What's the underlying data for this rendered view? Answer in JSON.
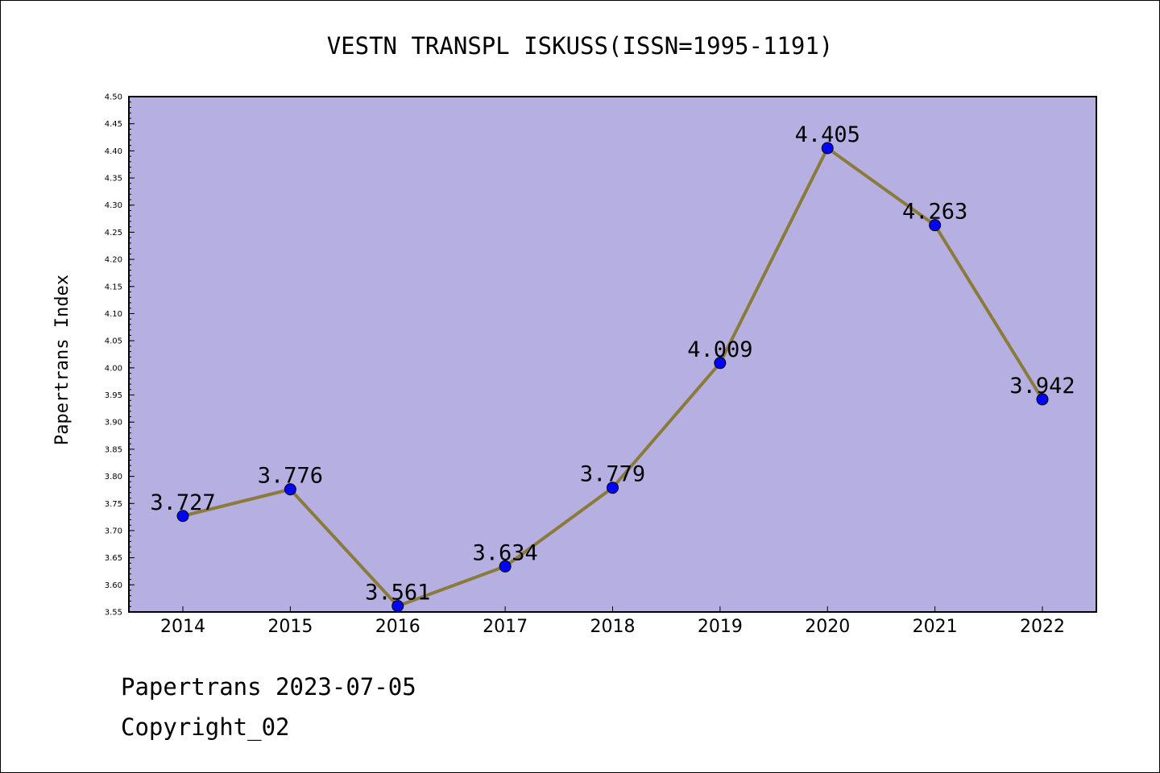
{
  "chart_data": {
    "type": "line",
    "title": "VESTN TRANSPL ISKUSS(ISSN=1995-1191)",
    "xlabel": "",
    "ylabel": "Papertrans Index",
    "categories": [
      "2014",
      "2015",
      "2016",
      "2017",
      "2018",
      "2019",
      "2020",
      "2021",
      "2022"
    ],
    "series": [
      {
        "values": [
          3.727,
          3.776,
          3.561,
          3.634,
          3.779,
          4.009,
          4.405,
          4.263,
          3.942
        ]
      }
    ],
    "data_labels": [
      "3.727",
      "3.776",
      "3.561",
      "3.634",
      "3.779",
      "4.009",
      "4.405",
      "4.263",
      "3.942"
    ],
    "ylim": [
      3.55,
      4.5
    ],
    "yticks": [
      "3.55",
      "3.60",
      "3.65",
      "3.70",
      "3.75",
      "3.80",
      "3.85",
      "3.90",
      "3.95",
      "4.00",
      "4.05",
      "4.10",
      "4.15",
      "4.20",
      "4.25",
      "4.30",
      "4.35",
      "4.40",
      "4.45",
      "4.50"
    ],
    "grid": false,
    "colors": {
      "plot_background": "#b5afe2",
      "line": "#8b7b3a",
      "marker": "#0000ff"
    }
  },
  "footer": {
    "date_line": "Papertrans 2023-07-05",
    "copyright": "Copyright_02"
  }
}
